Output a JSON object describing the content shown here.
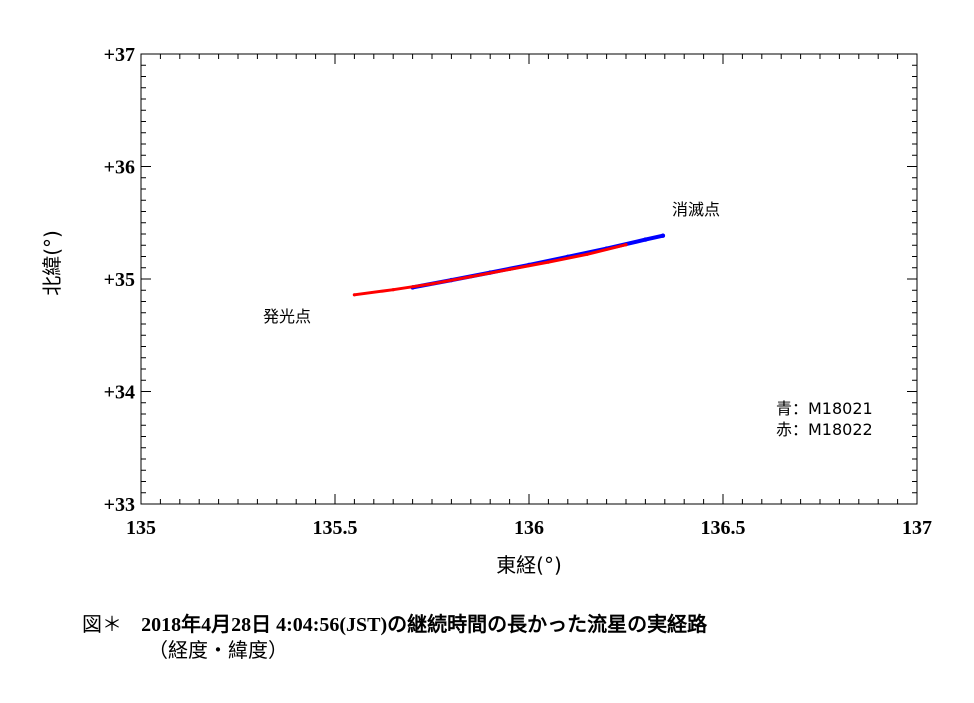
{
  "chart_data": {
    "type": "line",
    "xlabel": "東経(°)",
    "ylabel": "北緯(°)",
    "xlim": [
      135,
      137
    ],
    "ylim": [
      33,
      37
    ],
    "x_ticks": [
      "135",
      "135.5",
      "136",
      "136.5",
      "137"
    ],
    "y_ticks": [
      "+33",
      "+34",
      "+35",
      "+36",
      "+37"
    ],
    "grid": false,
    "legend_position": "bottom-right",
    "series": [
      {
        "name": "M18021",
        "color": "#0000ff",
        "x": [
          135.7,
          135.8,
          135.9,
          136.0,
          136.1,
          136.2,
          136.3,
          136.345
        ],
        "y": [
          34.925,
          34.99,
          35.057,
          35.125,
          35.197,
          35.27,
          35.35,
          35.385
        ]
      },
      {
        "name": "M18022",
        "color": "#ff0000",
        "x": [
          135.55,
          135.65,
          135.75,
          135.85,
          135.95,
          136.05,
          136.15,
          136.25
        ],
        "y": [
          34.86,
          34.905,
          34.957,
          35.02,
          35.085,
          35.15,
          35.22,
          35.305
        ]
      }
    ],
    "annotations": [
      {
        "text": "発光点"
      },
      {
        "text": "消滅点"
      }
    ],
    "legend": [
      {
        "label": "青：M18021"
      },
      {
        "label": "赤：M18022"
      }
    ]
  },
  "caption": {
    "prefix": "図＊",
    "date": "2018年4月28日 4:04:56(JST)の継続時間の長かった流星の実経路",
    "line2": "（経度・緯度）"
  }
}
